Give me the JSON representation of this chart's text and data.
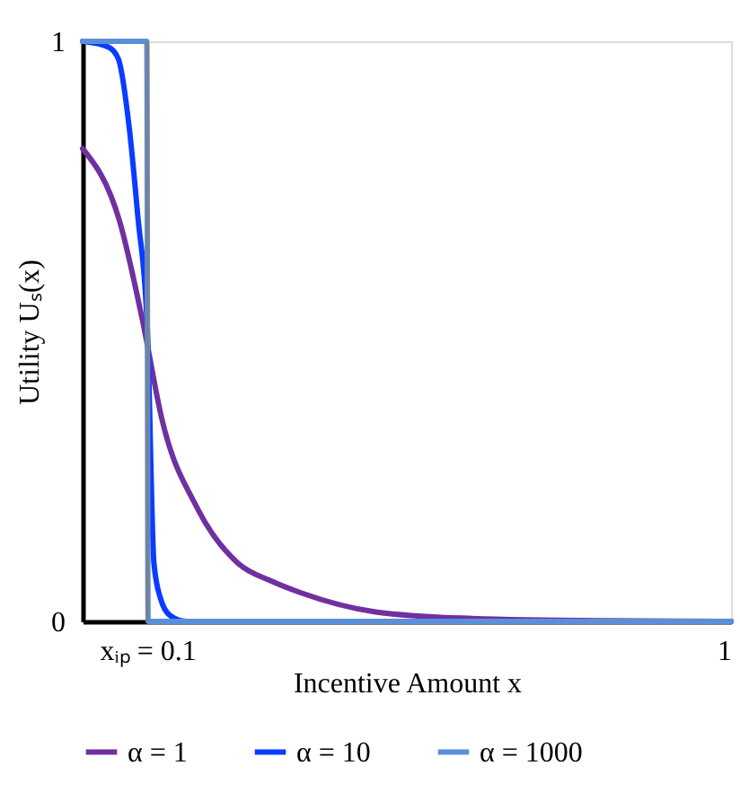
{
  "chart_data": {
    "type": "line",
    "xlabel": "Incentive Amount x",
    "ylabel": "Utility Uₛ(x)",
    "xlim": [
      0,
      1
    ],
    "ylim": [
      0,
      1
    ],
    "xticks": [
      {
        "value": 0.1,
        "label": "xᵢₚ = 0.1"
      },
      1
    ],
    "yticks": [
      0,
      1
    ],
    "legend": "bottom",
    "marker": "none",
    "line_style": "solid",
    "ref_lines": [
      {
        "axis": "x",
        "value": 0.1,
        "color": "#808080"
      }
    ],
    "series": [
      {
        "name": "α = 1",
        "color": "#7030a0",
        "x": [
          0,
          0.057,
          0.094,
          0.122,
          0.177,
          0.24,
          0.29,
          0.335,
          0.454,
          0.6,
          0.8,
          1
        ],
        "values": [
          0.815,
          0.69,
          0.51,
          0.35,
          0.195,
          0.1,
          0.07,
          0.05,
          0.016,
          0.005,
          0.001,
          0
        ]
      },
      {
        "name": "α = 10",
        "color": "#0a3cff",
        "x": [
          0,
          0.04,
          0.055,
          0.072,
          0.085,
          0.1,
          0.11,
          0.12,
          0.135,
          0.16,
          1
        ],
        "values": [
          1,
          0.99,
          0.97,
          0.85,
          0.7,
          0.5,
          0.1,
          0.04,
          0.01,
          0,
          0
        ]
      },
      {
        "name": "α = 1000",
        "color": "#5b8fd9",
        "x": [
          0,
          0.099,
          0.101,
          1
        ],
        "values": [
          1,
          1,
          0,
          0
        ]
      }
    ]
  }
}
